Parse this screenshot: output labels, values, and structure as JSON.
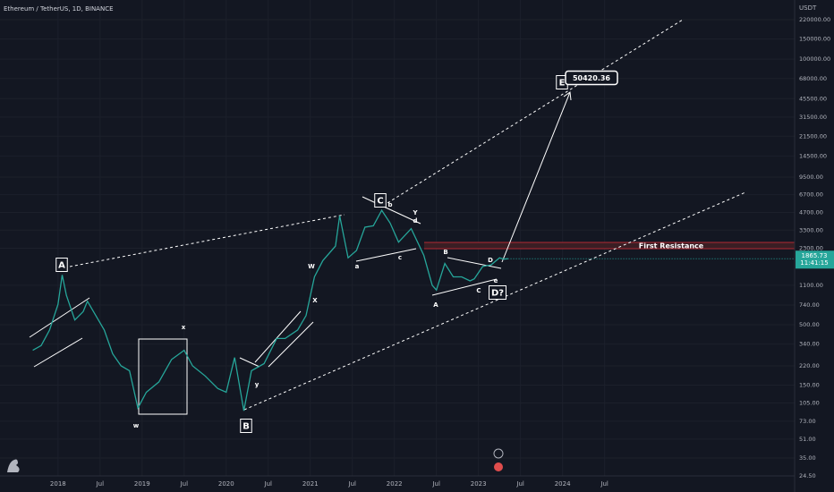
{
  "chart_data": {
    "type": "line",
    "title": "Ethereum / TetherUS, 1D, BINANCE",
    "y_unit": "USDT",
    "log_scale": true,
    "grid": true,
    "xlim": [
      2017.31,
      2026.76
    ],
    "xticks": [
      {
        "value": 2018,
        "label": "2018"
      },
      {
        "value": 2018.5,
        "label": "Jul"
      },
      {
        "value": 2019,
        "label": "2019"
      },
      {
        "value": 2019.5,
        "label": "Jul"
      },
      {
        "value": 2020,
        "label": "2020"
      },
      {
        "value": 2020.5,
        "label": "Jul"
      },
      {
        "value": 2021,
        "label": "2021"
      },
      {
        "value": 2021.5,
        "label": "Jul"
      },
      {
        "value": 2022,
        "label": "2022"
      },
      {
        "value": 2022.5,
        "label": "Jul"
      },
      {
        "value": 2023,
        "label": "2023"
      },
      {
        "value": 2023.5,
        "label": "Jul"
      },
      {
        "value": 2024,
        "label": "2024"
      },
      {
        "value": 2024.5,
        "label": "Jul"
      }
    ],
    "ylim": [
      24.5,
      220000
    ],
    "yticks": [
      {
        "value": 220000,
        "label": "220000.00"
      },
      {
        "value": 150000,
        "label": "150000.00"
      },
      {
        "value": 100000,
        "label": "100000.00"
      },
      {
        "value": 68000,
        "label": "68000.00"
      },
      {
        "value": 45500,
        "label": "45500.00"
      },
      {
        "value": 31500,
        "label": "31500.00"
      },
      {
        "value": 21500,
        "label": "21500.00"
      },
      {
        "value": 14500,
        "label": "14500.00"
      },
      {
        "value": 9500,
        "label": "9500.00"
      },
      {
        "value": 6700,
        "label": "6700.00"
      },
      {
        "value": 4700,
        "label": "4700.00"
      },
      {
        "value": 3300,
        "label": "3300.00"
      },
      {
        "value": 2300,
        "label": "2300.00"
      },
      {
        "value": 1100,
        "label": "1100.00"
      },
      {
        "value": 740,
        "label": "740.00"
      },
      {
        "value": 500,
        "label": "500.00"
      },
      {
        "value": 340,
        "label": "340.00"
      },
      {
        "value": 220,
        "label": "220.00"
      },
      {
        "value": 150,
        "label": "150.00"
      },
      {
        "value": 105,
        "label": "105.00"
      },
      {
        "value": 73,
        "label": "73.00"
      },
      {
        "value": 51,
        "label": "51.00"
      },
      {
        "value": 35,
        "label": "35.00"
      },
      {
        "value": 24.5,
        "label": "24.50"
      }
    ],
    "x": [
      2017.7,
      2017.8,
      2017.9,
      2018.0,
      2018.05,
      2018.1,
      2018.2,
      2018.3,
      2018.35,
      2018.45,
      2018.55,
      2018.65,
      2018.75,
      2018.85,
      2018.95,
      2019.05,
      2019.2,
      2019.35,
      2019.5,
      2019.6,
      2019.75,
      2019.9,
      2020.0,
      2020.1,
      2020.21,
      2020.3,
      2020.45,
      2020.6,
      2020.7,
      2020.85,
      2020.95,
      2021.05,
      2021.15,
      2021.3,
      2021.35,
      2021.45,
      2021.55,
      2021.65,
      2021.75,
      2021.85,
      2021.95,
      2022.05,
      2022.2,
      2022.35,
      2022.45,
      2022.5,
      2022.6,
      2022.7,
      2022.8,
      2022.9,
      2022.95,
      2023.05,
      2023.15,
      2023.25,
      2023.3,
      2023.35
    ],
    "series": [
      {
        "color": "#26a69a",
        "values": [
          300,
          330,
          450,
          750,
          1350,
          900,
          550,
          650,
          800,
          600,
          450,
          280,
          220,
          200,
          95,
          130,
          160,
          250,
          300,
          220,
          180,
          140,
          130,
          260,
          90,
          200,
          230,
          380,
          380,
          450,
          600,
          1300,
          1800,
          2400,
          4400,
          1900,
          2200,
          3500,
          3600,
          4900,
          3800,
          2600,
          3400,
          2000,
          1100,
          1000,
          1700,
          1300,
          1300,
          1200,
          1250,
          1600,
          1650,
          1900,
          1850,
          1865.73
        ]
      }
    ],
    "last_price": 1865.73,
    "last_price_label": "1865.73",
    "countdown": "11:41:15",
    "resistance_label": "First Resistance",
    "annotations": [
      "A",
      "B",
      "C",
      "D?",
      "E",
      "50420.36",
      "w",
      "x",
      "y",
      "W",
      "X",
      "Y",
      "a",
      "b",
      "c",
      "d",
      "e",
      "B",
      "D",
      "C",
      "A"
    ]
  }
}
